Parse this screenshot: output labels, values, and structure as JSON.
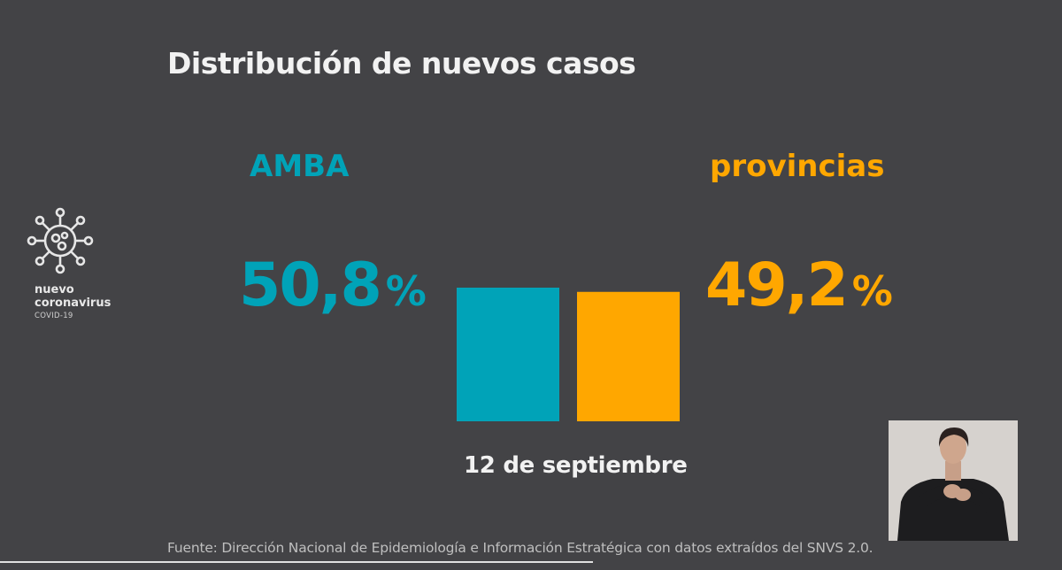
{
  "title": "Distribución de nuevos casos",
  "logo": {
    "line1": "nuevo",
    "line2": "coronavirus",
    "line3": "COVID-19",
    "icon": "virus-icon"
  },
  "colors": {
    "background": "#434346",
    "amba": "#00a3b8",
    "provincias": "#ffa700",
    "text": "#f2f2f2"
  },
  "chart_data": {
    "type": "bar",
    "title": "Distribución de nuevos casos",
    "categories": [
      "AMBA",
      "provincias"
    ],
    "values": [
      50.8,
      49.2
    ],
    "value_labels": [
      "50,8",
      "49,2"
    ],
    "unit": "%",
    "xlabel": "12 de septiembre",
    "ylabel": "",
    "ylim": [
      0,
      50.8
    ],
    "grid": false,
    "colors": [
      "#00a3b8",
      "#ffa700"
    ]
  },
  "date_label": "12 de septiembre",
  "source": "Fuente: Dirección Nacional de Epidemiología e Información Estratégica con datos extraídos del SNVS 2.0.",
  "interpreter": {
    "icon": "sign-language-interpreter"
  }
}
